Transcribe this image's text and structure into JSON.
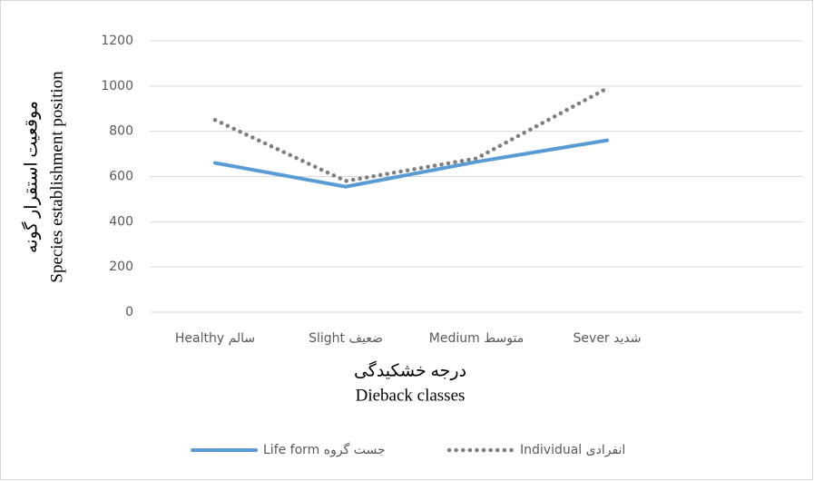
{
  "chart_data": {
    "type": "line",
    "categories": [
      "Healthy سالم",
      "Slight ضعیف",
      "Medium  متوسط",
      "Sever شدید",
      null
    ],
    "series": [
      {
        "name": "Life form جست گروه",
        "color": "#5b9bd5",
        "style": "solid",
        "values": [
          660,
          555,
          665,
          760,
          null
        ]
      },
      {
        "name": "Individual  انفرادی",
        "color": "#7f7f7f",
        "style": "dotted",
        "values": [
          850,
          580,
          680,
          990,
          null
        ]
      }
    ],
    "y_label": [
      "موقعیت استقرار گونه",
      "Species establishment position"
    ],
    "x_label": [
      "درجه خشکیدگی",
      "Dieback classes"
    ],
    "ylim": [
      0,
      1200
    ],
    "yticks": [
      0,
      200,
      400,
      600,
      800,
      1000,
      1200
    ],
    "grid": true,
    "legend": "bottom"
  }
}
